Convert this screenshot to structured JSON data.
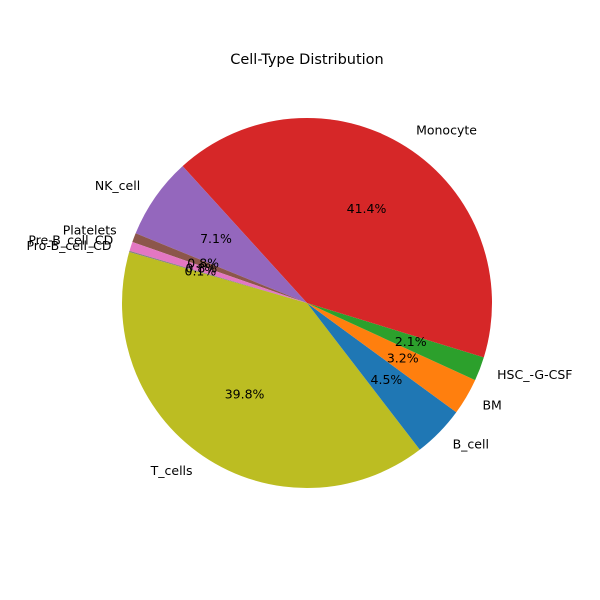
{
  "chart_data": {
    "type": "pie",
    "title": "Cell-Type Distribution",
    "start_angle_deg": 164,
    "direction": "counterclockwise",
    "slices": [
      {
        "label": "T_cells",
        "value": 39.8,
        "pct_label": "39.8%",
        "color": "#bcbd22"
      },
      {
        "label": "B_cell",
        "value": 4.5,
        "pct_label": "4.5%",
        "color": "#1f77b4"
      },
      {
        "label": "BM",
        "value": 3.2,
        "pct_label": "3.2%",
        "color": "#ff7f0e"
      },
      {
        "label": "HSC_-G-CSF",
        "value": 2.1,
        "pct_label": "2.1%",
        "color": "#2ca02c"
      },
      {
        "label": "Monocyte",
        "value": 41.4,
        "pct_label": "41.4%",
        "color": "#d62728"
      },
      {
        "label": "NK_cell",
        "value": 7.1,
        "pct_label": "7.1%",
        "color": "#9467bd"
      },
      {
        "label": "Platelets",
        "value": 0.8,
        "pct_label": "0.8%",
        "color": "#8c564b"
      },
      {
        "label": "Pre-B_cell_CD",
        "value": 0.8,
        "pct_label": "0.8%",
        "color": "#e377c2"
      },
      {
        "label": "Pro-B_cell_CD",
        "value": 0.1,
        "pct_label": "0.1%",
        "color": "#7f7f7f"
      }
    ]
  }
}
